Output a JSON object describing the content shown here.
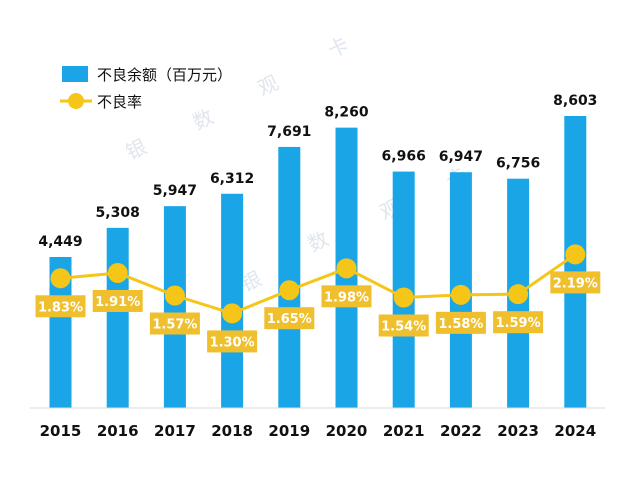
{
  "chart_data": {
    "type": "bar",
    "categories": [
      "2015",
      "2016",
      "2017",
      "2018",
      "2019",
      "2020",
      "2021",
      "2022",
      "2023",
      "2024"
    ],
    "series": [
      {
        "name": "不良余额（百万元）",
        "type": "bar",
        "values": [
          4449,
          5308,
          5947,
          6312,
          7691,
          8260,
          6966,
          6947,
          6756,
          8603
        ],
        "labels": [
          "4,449",
          "5,308",
          "5,947",
          "6,312",
          "7,691",
          "8,260",
          "6,966",
          "6,947",
          "6,756",
          "8,603"
        ]
      },
      {
        "name": "不良率",
        "type": "line",
        "values": [
          1.83,
          1.91,
          1.57,
          1.3,
          1.65,
          1.98,
          1.54,
          1.58,
          1.59,
          2.19
        ],
        "labels": [
          "1.83%",
          "1.91%",
          "1.57%",
          "1.30%",
          "1.65%",
          "1.98%",
          "1.54%",
          "1.58%",
          "1.59%",
          "2.19%"
        ]
      }
    ],
    "legend_position": "top-left",
    "grid": false,
    "colors": {
      "bar": "#1aa6e6",
      "line": "#f5c518",
      "label_box": "#efbf2e"
    }
  },
  "watermark": [
    "银",
    "数",
    "观",
    "卡"
  ]
}
